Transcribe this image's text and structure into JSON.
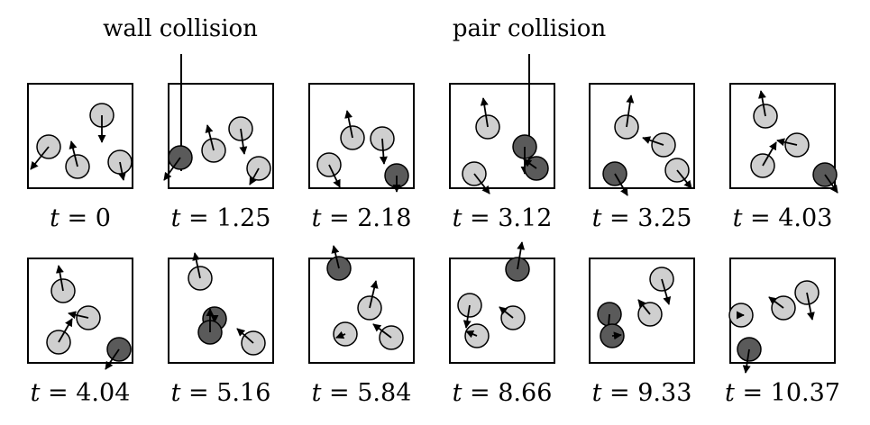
{
  "annotations": {
    "wall_collision": "wall collision",
    "pair_collision": "pair collision"
  },
  "colors": {
    "light_disk": "#cfcfcf",
    "dark_disk": "#5a5a5a",
    "stroke": "#000000"
  },
  "frames": [
    {
      "t_var": "t",
      "t_eq": " = 0"
    },
    {
      "t_var": "t",
      "t_eq": " = 1.25"
    },
    {
      "t_var": "t",
      "t_eq": " = 2.18"
    },
    {
      "t_var": "t",
      "t_eq": " = 3.12"
    },
    {
      "t_var": "t",
      "t_eq": " = 3.25"
    },
    {
      "t_var": "t",
      "t_eq": " = 4.03"
    },
    {
      "t_var": "t",
      "t_eq": " = 4.04"
    },
    {
      "t_var": "t",
      "t_eq": " = 5.16"
    },
    {
      "t_var": "t",
      "t_eq": " = 5.84"
    },
    {
      "t_var": "t",
      "t_eq": " = 8.66"
    },
    {
      "t_var": "t",
      "t_eq": " = 9.33"
    },
    {
      "t_var": "t",
      "t_eq": " = 10.37"
    }
  ]
}
